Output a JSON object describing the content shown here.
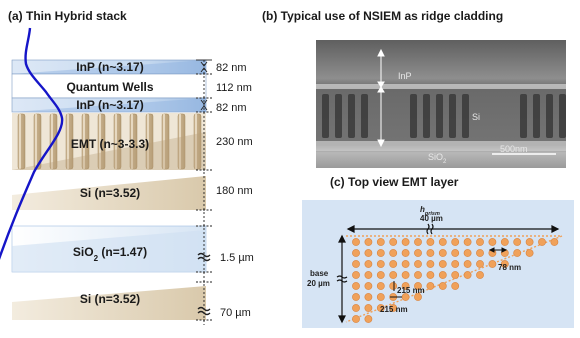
{
  "panel_a": {
    "title": "(a) Thin Hybrid stack",
    "layers": [
      {
        "label": "InP (n~3.17)",
        "thickness": "82 nm"
      },
      {
        "label": "Quantum Wells",
        "thickness": "112 nm"
      },
      {
        "label": "InP (n~3.17)",
        "thickness": "82 nm"
      },
      {
        "label": "EMT (n~3-3.3)",
        "thickness": "230 nm"
      },
      {
        "label": "Si (n=3.52)",
        "thickness": "180 nm"
      },
      {
        "label_main": "SiO",
        "label_sub": "2",
        "label_rest": " (n=1.47)",
        "thickness": "1.5 µm"
      },
      {
        "label": "Si (n=3.52)",
        "thickness": "70 µm"
      }
    ],
    "colors": {
      "inp": "#b9d0ec",
      "emt_fill": "#cdb796",
      "mode_curve": "#1515c8"
    }
  },
  "panel_b": {
    "title": "(b) Typical use of NSIEM as ridge cladding",
    "labels": {
      "inp": "InP",
      "si": "Si",
      "sio2_main": "SiO",
      "sio2_sub": "2",
      "scale": "500nm"
    }
  },
  "panel_c": {
    "title": "(c) Top view EMT layer",
    "prism_symbol": "h",
    "prism_sub": "prism",
    "prism_value": "40 µm",
    "base_label": "base",
    "base_value": "20 µm",
    "hole_size": "78 nm",
    "pitch_x": "215 nm",
    "pitch_y": "215 nm",
    "colors": {
      "background": "#d6e4f4",
      "hole": "#f0a15a"
    }
  }
}
